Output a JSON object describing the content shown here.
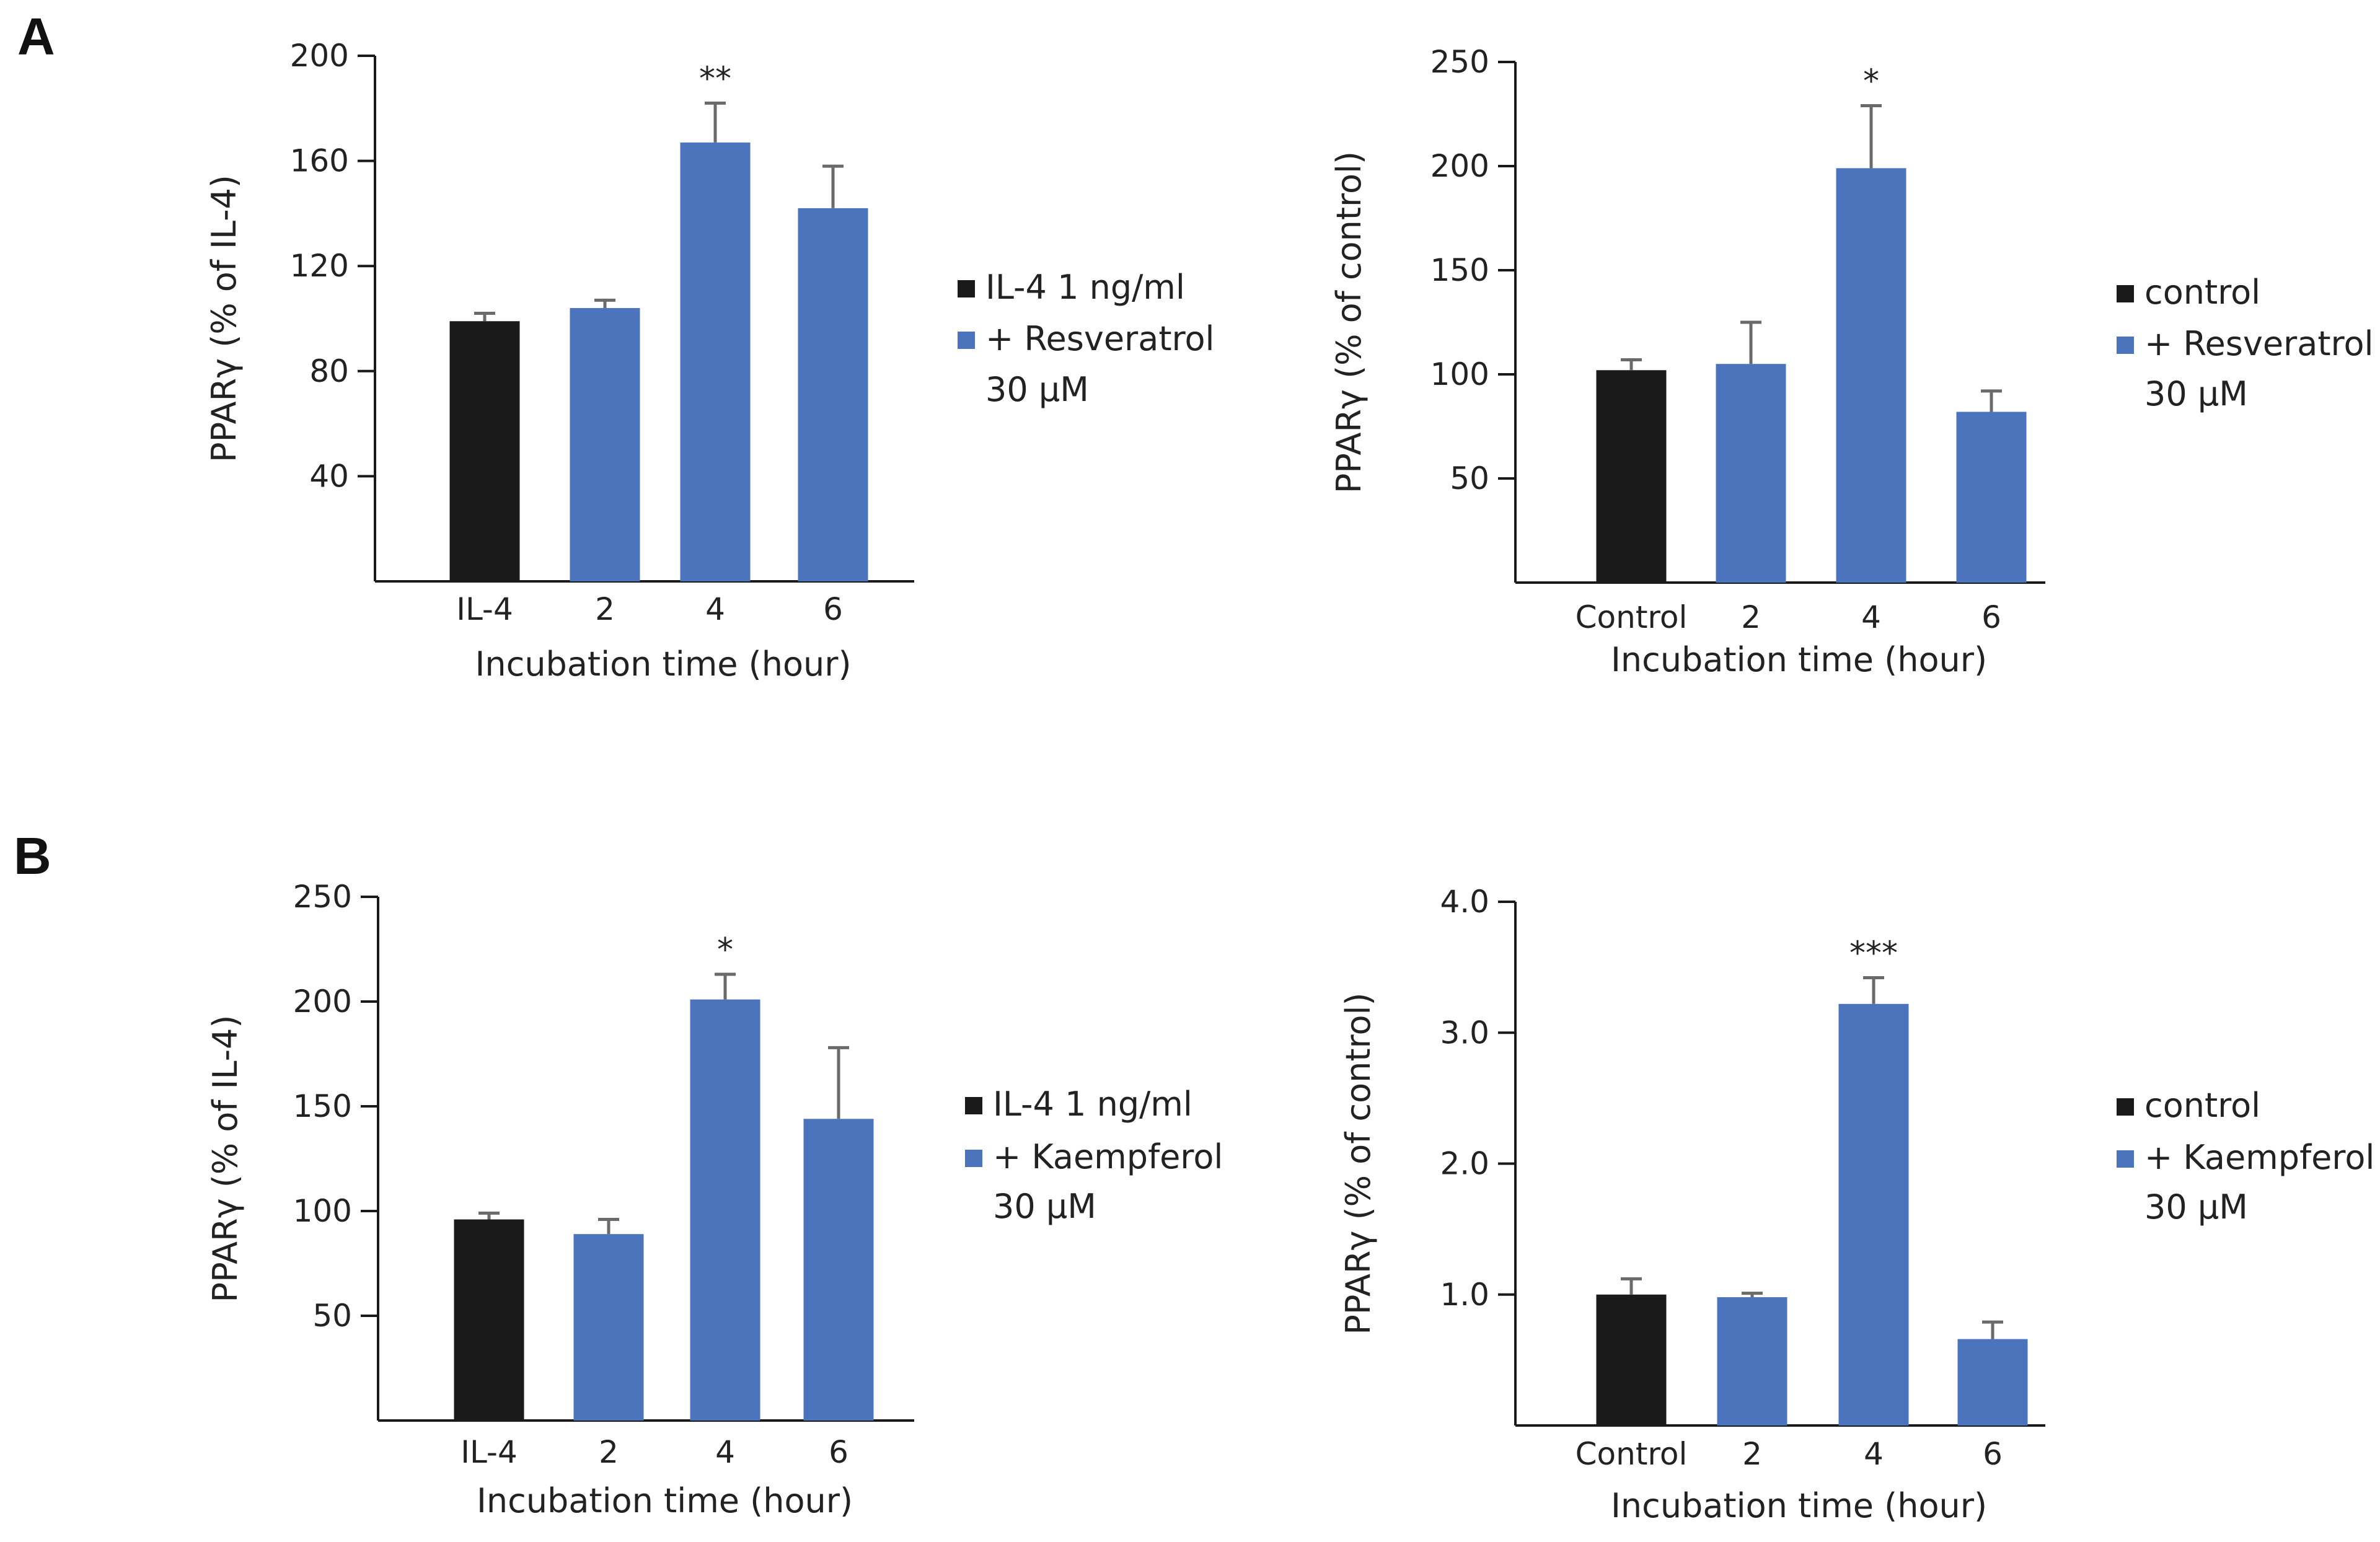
{
  "panels": [
    {
      "letter": "A"
    },
    {
      "letter": "B"
    }
  ],
  "chart_data": [
    {
      "type": "bar",
      "panel": "A",
      "position": "top-left",
      "categories": [
        "IL-4",
        "2",
        "4",
        "6"
      ],
      "values": [
        99,
        104,
        167,
        142
      ],
      "errors": [
        3,
        3,
        15,
        16
      ],
      "bar_colors": [
        "#1a1a1a",
        "#4c74bd",
        "#4c74bd",
        "#4c74bd"
      ],
      "significance": [
        "",
        "",
        "**",
        ""
      ],
      "ylabel": "PPARγ (% of IL-4)",
      "xlabel": "Incubation time (hour)",
      "ylim": [
        0,
        200
      ],
      "yticks": [
        40,
        80,
        120,
        160,
        200
      ],
      "ytick_labels": [
        "40",
        "80",
        "120",
        "160",
        "200"
      ],
      "legend": [
        {
          "label": "IL-4 1 ng/ml",
          "color": "#1a1a1a"
        },
        {
          "label": "+ Resveratrol",
          "color": "#4c74bd"
        },
        {
          "label": "30 µM",
          "color": ""
        }
      ]
    },
    {
      "type": "bar",
      "panel": "A",
      "position": "top-right",
      "categories": [
        "Control",
        "2",
        "4",
        "6"
      ],
      "values": [
        102,
        105,
        199,
        82
      ],
      "errors": [
        5,
        20,
        30,
        10
      ],
      "bar_colors": [
        "#1a1a1a",
        "#4c74bd",
        "#4c74bd",
        "#4c74bd"
      ],
      "significance": [
        "",
        "",
        "*",
        ""
      ],
      "ylabel": "PPARγ (% of control)",
      "xlabel": "Incubation time (hour)",
      "ylim": [
        0,
        250
      ],
      "yticks": [
        50,
        100,
        150,
        200,
        250
      ],
      "ytick_labels": [
        "50",
        "100",
        "150",
        "200",
        "250"
      ],
      "legend": [
        {
          "label": "control",
          "color": "#1a1a1a"
        },
        {
          "label": "+ Resveratrol",
          "color": "#4c74bd"
        },
        {
          "label": "30 µM",
          "color": ""
        }
      ]
    },
    {
      "type": "bar",
      "panel": "B",
      "position": "bottom-left",
      "categories": [
        "IL-4",
        "2",
        "4",
        "6"
      ],
      "values": [
        96,
        89,
        201,
        144
      ],
      "errors": [
        3,
        7,
        12,
        34
      ],
      "bar_colors": [
        "#1a1a1a",
        "#4c74bd",
        "#4c74bd",
        "#4c74bd"
      ],
      "significance": [
        "",
        "",
        "*",
        ""
      ],
      "ylabel": "PPARγ (% of IL-4)",
      "xlabel": "Incubation time (hour)",
      "ylim": [
        0,
        250
      ],
      "yticks": [
        50,
        100,
        150,
        200,
        250
      ],
      "ytick_labels": [
        "50",
        "100",
        "150",
        "200",
        "250"
      ],
      "legend": [
        {
          "label": "IL-4 1 ng/ml",
          "color": "#1a1a1a"
        },
        {
          "label": "+ Kaempferol",
          "color": "#4c74bd"
        },
        {
          "label": "30 µM",
          "color": ""
        }
      ]
    },
    {
      "type": "bar",
      "panel": "B",
      "position": "bottom-right",
      "categories": [
        "Control",
        "2",
        "4",
        "6"
      ],
      "values": [
        1.0,
        0.98,
        3.22,
        0.66
      ],
      "errors": [
        0.12,
        0.03,
        0.2,
        0.13
      ],
      "bar_colors": [
        "#1a1a1a",
        "#4c74bd",
        "#4c74bd",
        "#4c74bd"
      ],
      "significance": [
        "",
        "",
        "***",
        ""
      ],
      "ylabel": "PPARγ (% of control)",
      "xlabel": "Incubation time (hour)",
      "ylim": [
        0,
        4.0
      ],
      "yticks": [
        1.0,
        2.0,
        3.0,
        4.0
      ],
      "ytick_labels": [
        "1.0",
        "2.0",
        "3.0",
        "4.0"
      ],
      "legend": [
        {
          "label": "control",
          "color": "#1a1a1a"
        },
        {
          "label": "+ Kaempferol",
          "color": "#4c74bd"
        },
        {
          "label": "30 µM",
          "color": ""
        }
      ]
    }
  ]
}
